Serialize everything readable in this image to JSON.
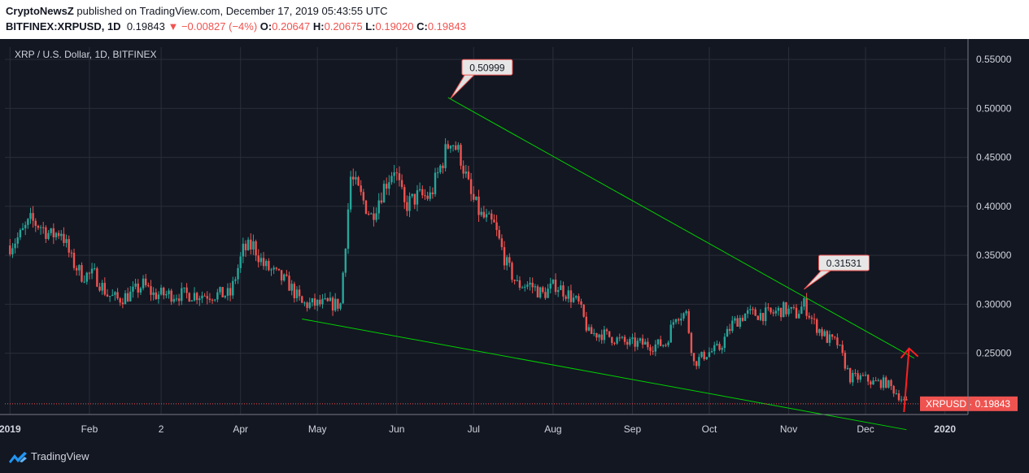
{
  "header": {
    "publisher": "CryptoNewsZ",
    "published_text": " published on TradingView.com, December 17, 2019 05:43:55 UTC",
    "symbol": "BITFINEX:XRPUSD, 1D",
    "last": "0.19843",
    "change": "−0.00827 (−4%)",
    "o_label": "O:",
    "o": "0.20647",
    "h_label": "H:",
    "h": "0.20675",
    "l_label": "L:",
    "l": "0.19020",
    "c_label": "C:",
    "c": "0.19843"
  },
  "footer": {
    "brand": "TradingView"
  },
  "colors": {
    "up": "#26a69a",
    "down": "#ef5350",
    "trend": "#00d000",
    "arrow": "#ff2020",
    "background": "#131722",
    "grid": "#2a2e39"
  },
  "chart_data": {
    "type": "candlestick",
    "title": "XRP / U.S. Dollar, 1D, BITFINEX",
    "x_tick_labels": [
      "2019",
      "Feb",
      "2",
      "Apr",
      "May",
      "Jun",
      "Jul",
      "Aug",
      "Sep",
      "Oct",
      "Nov",
      "Dec",
      "2020"
    ],
    "x_ticks_dates": [
      "2019-01-01",
      "2019-02-01",
      "2019-03-01",
      "2019-04-01",
      "2019-05-01",
      "2019-06-01",
      "2019-07-01",
      "2019-08-01",
      "2019-09-01",
      "2019-10-01",
      "2019-11-01",
      "2019-12-01",
      "2020-01-01"
    ],
    "y_ticks": [
      "0.25000",
      "0.30000",
      "0.35000",
      "0.40000",
      "0.45000",
      "0.50000",
      "0.55000"
    ],
    "ylim": [
      0.1875,
      0.5625
    ],
    "xlim": [
      "2018-12-30",
      "2020-01-10"
    ],
    "grid": true,
    "price_label": {
      "text": "XRPUSD · 0.19843",
      "value": 0.19843
    },
    "annotations": [
      {
        "text": "0.50999",
        "date": "2019-06-22",
        "value": 0.50999
      },
      {
        "text": "0.31531",
        "date": "2019-11-07",
        "value": 0.31531
      }
    ],
    "trendlines": [
      {
        "from": [
          "2019-06-21",
          0.511
        ],
        "to": [
          "2019-12-20",
          0.245
        ]
      },
      {
        "from": [
          "2019-04-25",
          0.285
        ],
        "to": [
          "2019-12-17",
          0.172
        ]
      }
    ],
    "arrow": {
      "from": [
        "2019-12-16",
        0.19
      ],
      "to": [
        "2019-12-18",
        0.255
      ]
    },
    "close_path": [
      [
        "2019-01-01",
        0.36
      ],
      [
        "2019-01-05",
        0.37
      ],
      [
        "2019-01-09",
        0.385
      ],
      [
        "2019-01-13",
        0.38
      ],
      [
        "2019-01-17",
        0.37
      ],
      [
        "2019-01-21",
        0.375
      ],
      [
        "2019-01-25",
        0.345
      ],
      [
        "2019-01-29",
        0.33
      ],
      [
        "2019-02-03",
        0.33
      ],
      [
        "2019-02-08",
        0.31
      ],
      [
        "2019-02-12",
        0.305
      ],
      [
        "2019-02-17",
        0.31
      ],
      [
        "2019-02-22",
        0.32
      ],
      [
        "2019-02-26",
        0.31
      ],
      [
        "2019-03-03",
        0.31
      ],
      [
        "2019-03-08",
        0.31
      ],
      [
        "2019-03-13",
        0.31
      ],
      [
        "2019-03-18",
        0.31
      ],
      [
        "2019-03-23",
        0.31
      ],
      [
        "2019-03-28",
        0.31
      ],
      [
        "2019-04-02",
        0.355
      ],
      [
        "2019-04-06",
        0.36
      ],
      [
        "2019-04-10",
        0.34
      ],
      [
        "2019-04-15",
        0.33
      ],
      [
        "2019-04-20",
        0.32
      ],
      [
        "2019-04-25",
        0.3
      ],
      [
        "2019-04-30",
        0.3
      ],
      [
        "2019-05-05",
        0.3
      ],
      [
        "2019-05-10",
        0.3
      ],
      [
        "2019-05-14",
        0.43
      ],
      [
        "2019-05-18",
        0.41
      ],
      [
        "2019-05-22",
        0.39
      ],
      [
        "2019-05-27",
        0.42
      ],
      [
        "2019-05-31",
        0.44
      ],
      [
        "2019-06-04",
        0.4
      ],
      [
        "2019-06-09",
        0.41
      ],
      [
        "2019-06-14",
        0.41
      ],
      [
        "2019-06-18",
        0.44
      ],
      [
        "2019-06-22",
        0.47
      ],
      [
        "2019-06-26",
        0.45
      ],
      [
        "2019-06-30",
        0.41
      ],
      [
        "2019-07-04",
        0.39
      ],
      [
        "2019-07-09",
        0.38
      ],
      [
        "2019-07-14",
        0.34
      ],
      [
        "2019-07-18",
        0.32
      ],
      [
        "2019-07-23",
        0.32
      ],
      [
        "2019-07-28",
        0.31
      ],
      [
        "2019-08-02",
        0.32
      ],
      [
        "2019-08-07",
        0.31
      ],
      [
        "2019-08-11",
        0.3
      ],
      [
        "2019-08-15",
        0.27
      ],
      [
        "2019-08-20",
        0.27
      ],
      [
        "2019-08-25",
        0.265
      ],
      [
        "2019-08-30",
        0.26
      ],
      [
        "2019-09-04",
        0.26
      ],
      [
        "2019-09-09",
        0.258
      ],
      [
        "2019-09-14",
        0.26
      ],
      [
        "2019-09-18",
        0.29
      ],
      [
        "2019-09-22",
        0.29
      ],
      [
        "2019-09-25",
        0.24
      ],
      [
        "2019-09-30",
        0.25
      ],
      [
        "2019-10-05",
        0.255
      ],
      [
        "2019-10-10",
        0.28
      ],
      [
        "2019-10-15",
        0.29
      ],
      [
        "2019-10-20",
        0.29
      ],
      [
        "2019-10-25",
        0.29
      ],
      [
        "2019-10-30",
        0.295
      ],
      [
        "2019-11-04",
        0.29
      ],
      [
        "2019-11-07",
        0.3
      ],
      [
        "2019-11-11",
        0.28
      ],
      [
        "2019-11-16",
        0.265
      ],
      [
        "2019-11-20",
        0.26
      ],
      [
        "2019-11-25",
        0.225
      ],
      [
        "2019-11-30",
        0.225
      ],
      [
        "2019-12-04",
        0.22
      ],
      [
        "2019-12-09",
        0.22
      ],
      [
        "2019-12-13",
        0.21
      ],
      [
        "2019-12-17",
        0.198
      ]
    ]
  }
}
